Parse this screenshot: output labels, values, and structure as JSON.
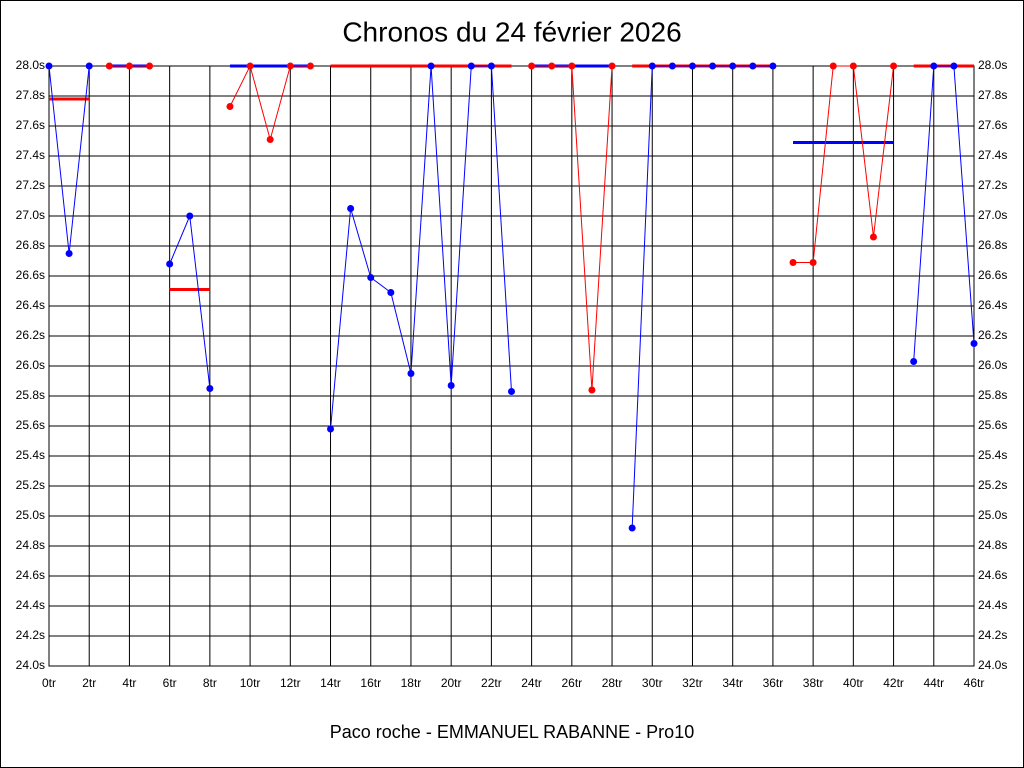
{
  "chart_data": {
    "type": "line",
    "title": "Chronos du 24 février 2026",
    "x_label": "Paco roche - EMMANUEL RABANNE - Pro10",
    "xlim": [
      0,
      46
    ],
    "ylim": [
      24.0,
      28.0
    ],
    "grid": true,
    "xticks": [
      {
        "value": 0,
        "label": "0tr"
      },
      {
        "value": 2,
        "label": "2tr"
      },
      {
        "value": 4,
        "label": "4tr"
      },
      {
        "value": 6,
        "label": "6tr"
      },
      {
        "value": 8,
        "label": "8tr"
      },
      {
        "value": 10,
        "label": "10tr"
      },
      {
        "value": 12,
        "label": "12tr"
      },
      {
        "value": 14,
        "label": "14tr"
      },
      {
        "value": 16,
        "label": "16tr"
      },
      {
        "value": 18,
        "label": "18tr"
      },
      {
        "value": 20,
        "label": "20tr"
      },
      {
        "value": 22,
        "label": "22tr"
      },
      {
        "value": 24,
        "label": "24tr"
      },
      {
        "value": 26,
        "label": "26tr"
      },
      {
        "value": 28,
        "label": "28tr"
      },
      {
        "value": 30,
        "label": "30tr"
      },
      {
        "value": 32,
        "label": "32tr"
      },
      {
        "value": 34,
        "label": "34tr"
      },
      {
        "value": 36,
        "label": "36tr"
      },
      {
        "value": 38,
        "label": "38tr"
      },
      {
        "value": 40,
        "label": "40tr"
      },
      {
        "value": 42,
        "label": "42tr"
      },
      {
        "value": 44,
        "label": "44tr"
      },
      {
        "value": 46,
        "label": "46tr"
      }
    ],
    "yticks": [
      {
        "value": 24.0,
        "label": "24.0s"
      },
      {
        "value": 24.2,
        "label": "24.2s"
      },
      {
        "value": 24.4,
        "label": "24.4s"
      },
      {
        "value": 24.6,
        "label": "24.6s"
      },
      {
        "value": 24.8,
        "label": "24.8s"
      },
      {
        "value": 25.0,
        "label": "25.0s"
      },
      {
        "value": 25.2,
        "label": "25.2s"
      },
      {
        "value": 25.4,
        "label": "25.4s"
      },
      {
        "value": 25.6,
        "label": "25.6s"
      },
      {
        "value": 25.8,
        "label": "25.8s"
      },
      {
        "value": 26.0,
        "label": "26.0s"
      },
      {
        "value": 26.2,
        "label": "26.2s"
      },
      {
        "value": 26.4,
        "label": "26.4s"
      },
      {
        "value": 26.6,
        "label": "26.6s"
      },
      {
        "value": 26.8,
        "label": "26.8s"
      },
      {
        "value": 27.0,
        "label": "27.0s"
      },
      {
        "value": 27.2,
        "label": "27.2s"
      },
      {
        "value": 27.4,
        "label": "27.4s"
      },
      {
        "value": 27.6,
        "label": "27.6s"
      },
      {
        "value": 27.8,
        "label": "27.8s"
      },
      {
        "value": 28.0,
        "label": "28.0s"
      }
    ],
    "stints": [
      {
        "color": "#0000ff",
        "average_color": "#ff0000",
        "x": [
          0,
          1,
          2
        ],
        "values": [
          28.0,
          26.75,
          28.0
        ],
        "average": 27.78
      },
      {
        "color": "#ff0000",
        "average_color": "#0000ff",
        "x": [
          3,
          4,
          5
        ],
        "values": [
          28.0,
          28.0,
          28.0
        ],
        "average": 28.0
      },
      {
        "color": "#0000ff",
        "average_color": "#ff0000",
        "x": [
          6,
          7,
          8
        ],
        "values": [
          26.68,
          27.0,
          25.85
        ],
        "average": 26.51
      },
      {
        "color": "#ff0000",
        "average_color": "#0000ff",
        "x": [
          9,
          10,
          11,
          12,
          13
        ],
        "values": [
          27.73,
          28.0,
          27.51,
          28.0,
          28.0
        ],
        "average": 28.0
      },
      {
        "color": "#0000ff",
        "average_color": "#ff0000",
        "x": [
          14,
          15,
          16,
          17,
          18,
          19,
          20,
          21,
          22,
          23
        ],
        "values": [
          25.58,
          27.05,
          26.59,
          26.49,
          25.95,
          28.0,
          25.87,
          28.0,
          28.0,
          25.83
        ],
        "average": 28.0
      },
      {
        "color": "#ff0000",
        "average_color": "#0000ff",
        "x": [
          24,
          25,
          26,
          27,
          28
        ],
        "values": [
          28.0,
          28.0,
          28.0,
          25.84,
          28.0
        ],
        "average": 28.0
      },
      {
        "color": "#0000ff",
        "average_color": "#ff0000",
        "x": [
          29,
          30,
          31,
          32,
          33,
          34,
          35,
          36
        ],
        "values": [
          24.92,
          28.0,
          28.0,
          28.0,
          28.0,
          28.0,
          28.0,
          28.0
        ],
        "average": 28.0
      },
      {
        "color": "#ff0000",
        "average_color": "#0000ff",
        "x": [
          37,
          38,
          39,
          40,
          41,
          42
        ],
        "values": [
          26.69,
          26.69,
          28.0,
          28.0,
          26.86,
          28.0
        ],
        "average": 27.49
      },
      {
        "color": "#0000ff",
        "average_color": "#ff0000",
        "x": [
          43,
          44,
          45,
          46
        ],
        "values": [
          26.03,
          28.0,
          28.0,
          26.15
        ],
        "average": 28.0
      }
    ]
  }
}
